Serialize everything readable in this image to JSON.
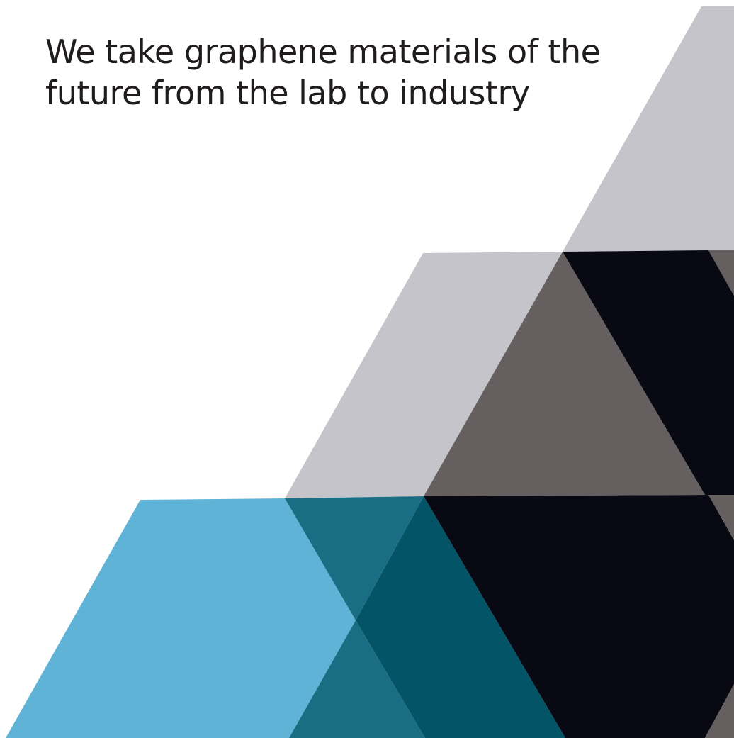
{
  "headline": {
    "line1": "We take graphene materials of the",
    "line2": "future from the lab to industry"
  },
  "colors": {
    "background": "#ffffff",
    "text": "#1f1b1f",
    "light_grey": "#c5c4ca",
    "mid_grey": "#655f5f",
    "near_black": "#090913",
    "light_blue": "#5fb3d7",
    "teal": "#1a6e84",
    "deep_teal": "#045467"
  }
}
